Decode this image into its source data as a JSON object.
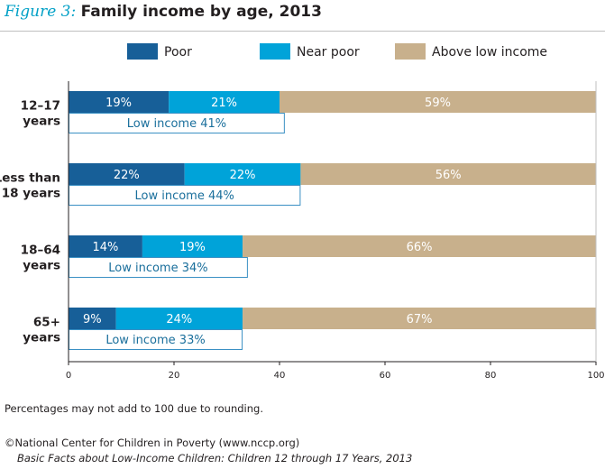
{
  "figure": {
    "label": "Figure 3:",
    "title": "Family income by age, 2013"
  },
  "note": "Percentages may not add to 100 due to rounding.",
  "credit": "©National Center for Children in Poverty (www.nccp.org)",
  "source": "Basic Facts about Low-Income Children: Children 12 through 17 Years, 2013",
  "colors": {
    "poor": "#175f98",
    "near_poor": "#00a3d9",
    "above_low_income": "#c8b08c",
    "low_income_outline": "#3a90c4",
    "low_income_text": "#1a6f9c"
  },
  "chart_data": {
    "type": "bar",
    "orientation": "horizontal",
    "stacked": true,
    "categories": [
      "12–17 years",
      "Less than 18 years",
      "18–64 years",
      "65+ years"
    ],
    "category_lines": [
      [
        "12–17",
        "years"
      ],
      [
        "Less than",
        "18 years"
      ],
      [
        "18–64",
        "years"
      ],
      [
        "65+",
        "years"
      ]
    ],
    "series": [
      {
        "name": "Poor",
        "values": [
          19,
          22,
          14,
          9
        ],
        "labels": [
          "19%",
          "22%",
          "14%",
          "9%"
        ]
      },
      {
        "name": "Near poor",
        "values": [
          21,
          22,
          19,
          24
        ],
        "labels": [
          "21%",
          "22%",
          "19%",
          "24%"
        ]
      },
      {
        "name": "Above low income",
        "values": [
          59,
          56,
          66,
          67
        ],
        "labels": [
          "59%",
          "56%",
          "66%",
          "67%"
        ]
      }
    ],
    "low_income": {
      "values": [
        41,
        44,
        34,
        33
      ],
      "labels": [
        "Low income  41%",
        "Low income  44%",
        "Low income  34%",
        "Low income  33%"
      ]
    },
    "xlim": [
      0,
      100
    ],
    "xticks": [
      0,
      20,
      40,
      60,
      80,
      100
    ],
    "xtick_labels": [
      "0",
      "20",
      "40",
      "60",
      "80",
      "100"
    ],
    "legend_position": "top",
    "grid": false
  }
}
